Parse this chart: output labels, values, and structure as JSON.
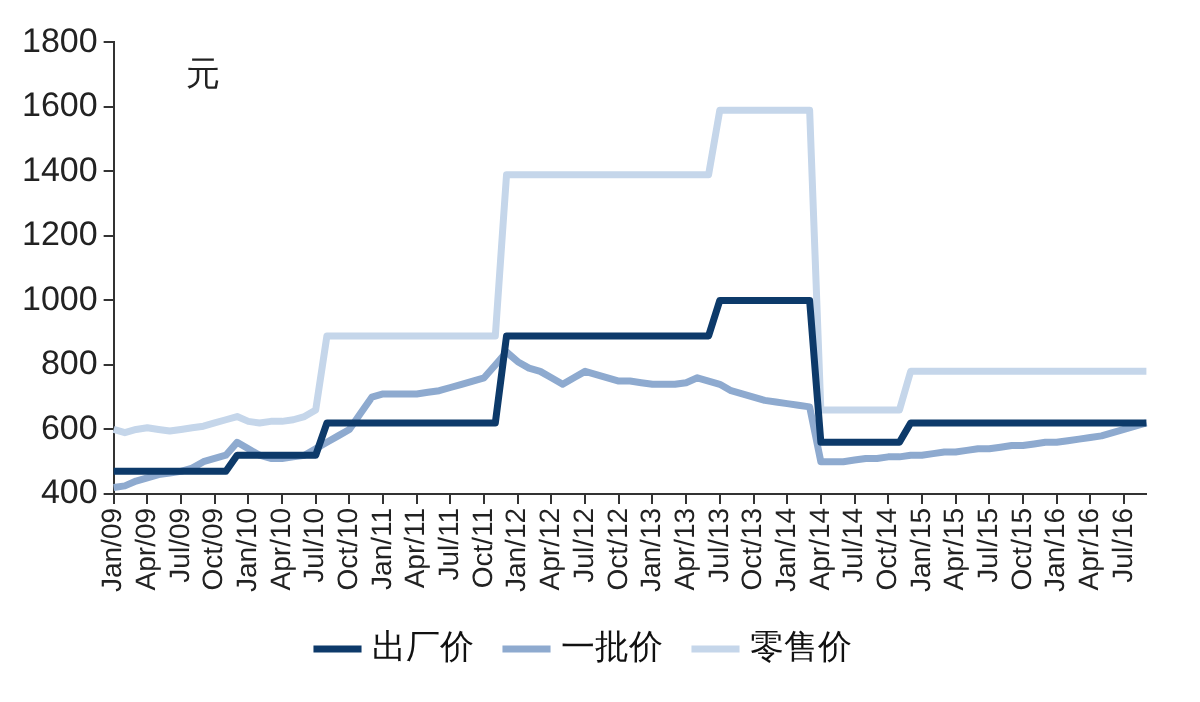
{
  "chart_data": {
    "type": "line",
    "ylabel": "元",
    "categories": [
      "Jan/09",
      null,
      null,
      "Apr/09",
      null,
      null,
      "Jul/09",
      null,
      null,
      "Oct/09",
      null,
      null,
      "Jan/10",
      null,
      null,
      "Apr/10",
      null,
      null,
      "Jul/10",
      null,
      null,
      "Oct/10",
      null,
      null,
      "Jan/11",
      null,
      null,
      "Apr/11",
      null,
      null,
      "Jul/11",
      null,
      null,
      "Oct/11",
      null,
      null,
      "Jan/12",
      null,
      null,
      "Apr/12",
      null,
      null,
      "Jul/12",
      null,
      null,
      "Oct/12",
      null,
      null,
      "Jan/13",
      null,
      null,
      "Apr/13",
      null,
      null,
      "Jul/13",
      null,
      null,
      "Oct/13",
      null,
      null,
      "Jan/14",
      null,
      null,
      "Apr/14",
      null,
      null,
      "Jul/14",
      null,
      null,
      "Oct/14",
      null,
      null,
      "Jan/15",
      null,
      null,
      "Apr/15",
      null,
      null,
      "Jul/15",
      null,
      null,
      "Oct/15",
      null,
      null,
      "Jan/16",
      null,
      null,
      "Apr/16",
      null,
      null,
      "Jul/16",
      null,
      null
    ],
    "series": [
      {
        "name": "出厂价",
        "color": "#0d3a6a",
        "values": [
          470,
          470,
          470,
          470,
          470,
          470,
          470,
          470,
          470,
          470,
          470,
          520,
          520,
          520,
          520,
          520,
          520,
          520,
          520,
          620,
          620,
          620,
          620,
          620,
          620,
          620,
          620,
          620,
          620,
          620,
          620,
          620,
          620,
          620,
          620,
          890,
          890,
          890,
          890,
          890,
          890,
          890,
          890,
          890,
          890,
          890,
          890,
          890,
          890,
          890,
          890,
          890,
          890,
          890,
          1000,
          1000,
          1000,
          1000,
          1000,
          1000,
          1000,
          1000,
          1000,
          560,
          560,
          560,
          560,
          560,
          560,
          560,
          560,
          620,
          620,
          620,
          620,
          620,
          620,
          620,
          620,
          620,
          620,
          620,
          620,
          620,
          620,
          620,
          620,
          620,
          620,
          620,
          620,
          620,
          620
        ]
      },
      {
        "name": "一批价",
        "color": "#8eaacf",
        "values": [
          420,
          425,
          440,
          450,
          460,
          465,
          470,
          480,
          500,
          510,
          520,
          560,
          540,
          520,
          510,
          510,
          515,
          520,
          540,
          560,
          580,
          600,
          650,
          700,
          710,
          710,
          710,
          710,
          715,
          720,
          730,
          740,
          750,
          760,
          800,
          840,
          810,
          790,
          780,
          760,
          740,
          760,
          780,
          770,
          760,
          750,
          750,
          745,
          740,
          740,
          740,
          745,
          760,
          750,
          740,
          720,
          710,
          700,
          690,
          685,
          680,
          675,
          670,
          500,
          500,
          500,
          505,
          510,
          510,
          515,
          515,
          520,
          520,
          525,
          530,
          530,
          535,
          540,
          540,
          545,
          550,
          550,
          555,
          560,
          560,
          565,
          570,
          575,
          580,
          590,
          600,
          610,
          620
        ]
      },
      {
        "name": "零售价",
        "color": "#c5d6ea",
        "values": [
          600,
          590,
          600,
          605,
          600,
          595,
          600,
          605,
          610,
          620,
          630,
          640,
          625,
          620,
          625,
          625,
          630,
          640,
          660,
          890,
          890,
          890,
          890,
          890,
          890,
          890,
          890,
          890,
          890,
          890,
          890,
          890,
          890,
          890,
          890,
          1390,
          1390,
          1390,
          1390,
          1390,
          1390,
          1390,
          1390,
          1390,
          1390,
          1390,
          1390,
          1390,
          1390,
          1390,
          1390,
          1390,
          1390,
          1390,
          1590,
          1590,
          1590,
          1590,
          1590,
          1590,
          1590,
          1590,
          1590,
          660,
          660,
          660,
          660,
          660,
          660,
          660,
          660,
          780,
          780,
          780,
          780,
          780,
          780,
          780,
          780,
          780,
          780,
          780,
          780,
          780,
          780,
          780,
          780,
          780,
          780,
          780,
          780,
          780,
          780
        ]
      }
    ],
    "ylim": [
      400,
      1800
    ],
    "yticks": [
      400,
      600,
      800,
      1000,
      1200,
      1400,
      1600,
      1800
    ],
    "grid": false,
    "legend": "bottom",
    "marker": "none",
    "line_style": "solid"
  }
}
